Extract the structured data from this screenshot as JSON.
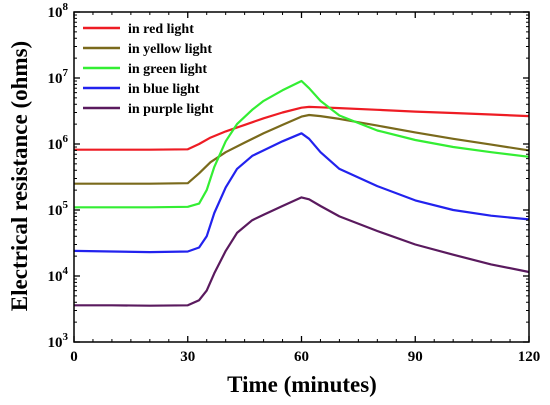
{
  "chart_data": {
    "type": "line",
    "xlabel": "Time (minutes)",
    "ylabel": "Electrical resistance (ohms)",
    "xlim": [
      0,
      120
    ],
    "ylim": [
      1000,
      100000000
    ],
    "yscale": "log",
    "xticks": [
      0,
      30,
      60,
      90,
      120
    ],
    "xtick_labels": [
      "0",
      "30",
      "60",
      "90",
      "120"
    ],
    "yticks": [
      1000,
      10000,
      100000,
      1000000,
      10000000,
      100000000
    ],
    "ytick_labels": [
      {
        "base": "10",
        "exp": "3"
      },
      {
        "base": "10",
        "exp": "4"
      },
      {
        "base": "10",
        "exp": "5"
      },
      {
        "base": "10",
        "exp": "6"
      },
      {
        "base": "10",
        "exp": "7"
      },
      {
        "base": "10",
        "exp": "8"
      }
    ],
    "grid": false,
    "legend_position": "top-left",
    "series": [
      {
        "name": "in red light",
        "color": "#ee1c24",
        "x": [
          0,
          10,
          20,
          30,
          33,
          36,
          40,
          45,
          50,
          55,
          60,
          62,
          65,
          70,
          80,
          90,
          100,
          110,
          120
        ],
        "y": [
          820000,
          820000,
          820000,
          830000,
          1000000,
          1250000,
          1550000,
          1950000,
          2450000,
          3000000,
          3550000,
          3650000,
          3600000,
          3500000,
          3300000,
          3100000,
          2950000,
          2800000,
          2650000
        ]
      },
      {
        "name": "in yellow light",
        "color": "#7a6a1c",
        "x": [
          0,
          10,
          20,
          30,
          33,
          36,
          40,
          45,
          50,
          55,
          60,
          62,
          65,
          70,
          80,
          90,
          100,
          110,
          120
        ],
        "y": [
          250000,
          250000,
          250000,
          255000,
          360000,
          530000,
          750000,
          1050000,
          1450000,
          1950000,
          2600000,
          2750000,
          2650000,
          2400000,
          1900000,
          1500000,
          1200000,
          980000,
          800000
        ]
      },
      {
        "name": "in green light",
        "color": "#33ee33",
        "x": [
          0,
          10,
          20,
          30,
          33,
          35,
          37,
          40,
          43,
          47,
          50,
          55,
          60,
          62,
          65,
          70,
          80,
          90,
          100,
          110,
          120
        ],
        "y": [
          110000,
          110000,
          110000,
          112000,
          125000,
          200000,
          450000,
          1100000,
          2000000,
          3300000,
          4500000,
          6500000,
          9000000,
          7000000,
          4500000,
          2700000,
          1600000,
          1150000,
          900000,
          750000,
          640000
        ]
      },
      {
        "name": "in blue light",
        "color": "#2222ee",
        "x": [
          0,
          10,
          20,
          30,
          33,
          35,
          37,
          40,
          43,
          47,
          50,
          55,
          60,
          62,
          65,
          70,
          80,
          90,
          100,
          110,
          120
        ],
        "y": [
          24000,
          23500,
          23000,
          23500,
          27000,
          40000,
          90000,
          220000,
          420000,
          660000,
          800000,
          1100000,
          1450000,
          1200000,
          750000,
          420000,
          230000,
          140000,
          100000,
          82000,
          72000
        ]
      },
      {
        "name": "in purple light",
        "color": "#5a1a5e",
        "x": [
          0,
          10,
          20,
          30,
          33,
          35,
          37,
          40,
          43,
          47,
          50,
          55,
          60,
          62,
          65,
          70,
          80,
          90,
          100,
          110,
          120
        ],
        "y": [
          3600,
          3600,
          3550,
          3600,
          4300,
          6000,
          11000,
          24000,
          45000,
          70000,
          85000,
          115000,
          155000,
          145000,
          115000,
          80000,
          48000,
          30000,
          21000,
          15000,
          11500
        ]
      }
    ]
  }
}
